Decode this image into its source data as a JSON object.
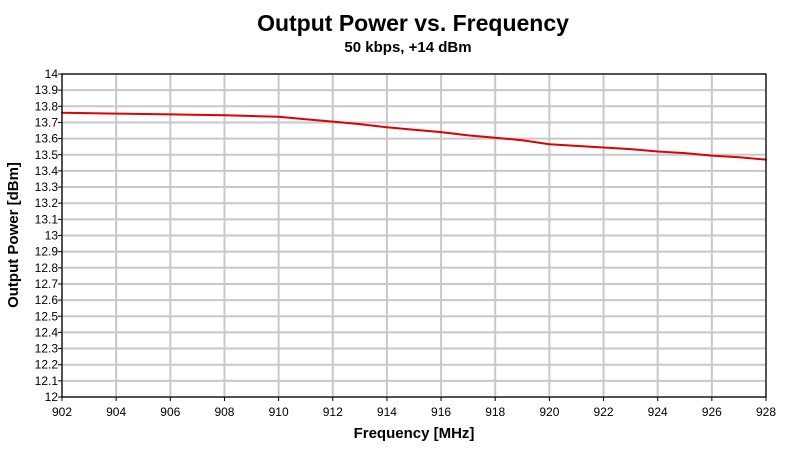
{
  "chart_data": {
    "type": "line",
    "title": "Output Power vs. Frequency",
    "subtitle": "50 kbps, +14 dBm",
    "xlabel": "Frequency [MHz]",
    "ylabel": "Output Power [dBm]",
    "xlim": [
      902,
      928
    ],
    "ylim": [
      12,
      14
    ],
    "x_ticks": [
      902,
      904,
      906,
      908,
      910,
      912,
      914,
      916,
      918,
      920,
      922,
      924,
      926,
      928
    ],
    "y_ticks": [
      12,
      12.1,
      12.2,
      12.3,
      12.4,
      12.5,
      12.6,
      12.7,
      12.8,
      12.9,
      13,
      13.1,
      13.2,
      13.3,
      13.4,
      13.5,
      13.6,
      13.7,
      13.8,
      13.9,
      14
    ],
    "x_tick_labels": [
      "902",
      "904",
      "906",
      "908",
      "910",
      "912",
      "914",
      "916",
      "918",
      "920",
      "922",
      "924",
      "926",
      "928"
    ],
    "y_tick_labels": [
      "12",
      "12.1",
      "12.2",
      "12.3",
      "12.4",
      "12.5",
      "12.6",
      "12.7",
      "12.8",
      "12.9",
      "13",
      "13.1",
      "13.2",
      "13.3",
      "13.4",
      "13.5",
      "13.6",
      "13.7",
      "13.8",
      "13.9",
      "14"
    ],
    "grid": true,
    "legend": "none",
    "series": [
      {
        "name": "Output Power",
        "color": "#e00000",
        "x": [
          902,
          904,
          906,
          908,
          909,
          910,
          911,
          912,
          913,
          914,
          915,
          916,
          917,
          918,
          919,
          920,
          921,
          922,
          923,
          924,
          925,
          926,
          927,
          928
        ],
        "values": [
          13.76,
          13.755,
          13.75,
          13.745,
          13.74,
          13.735,
          13.72,
          13.705,
          13.69,
          13.67,
          13.655,
          13.64,
          13.62,
          13.605,
          13.59,
          13.565,
          13.555,
          13.545,
          13.535,
          13.52,
          13.51,
          13.495,
          13.485,
          13.47
        ]
      }
    ]
  }
}
